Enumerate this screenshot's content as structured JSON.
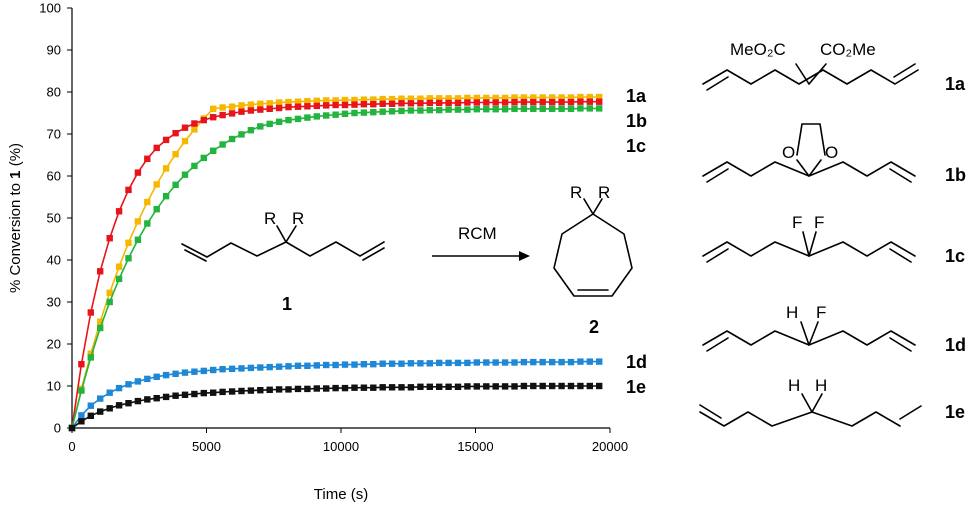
{
  "chart_data": {
    "type": "scatter",
    "title": "",
    "xlabel": "Time (s)",
    "ylabel": {
      "prefix": "% Conversion to ",
      "bold": "1",
      "suffix": " (%)"
    },
    "xlim": [
      0,
      20000
    ],
    "ylim": [
      0,
      100
    ],
    "xticks": [
      0,
      5000,
      10000,
      15000,
      20000
    ],
    "yticks": [
      0,
      10,
      20,
      30,
      40,
      50,
      60,
      70,
      80,
      90,
      100
    ],
    "grid": false,
    "x": [
      0,
      350,
      700,
      1050,
      1400,
      1750,
      2100,
      2450,
      2800,
      3150,
      3500,
      3850,
      4200,
      4550,
      4900,
      5250,
      5600,
      5950,
      6300,
      6650,
      7000,
      7350,
      7700,
      8050,
      8400,
      8750,
      9100,
      9450,
      9800,
      10150,
      10500,
      10850,
      11200,
      11550,
      11900,
      12250,
      12600,
      12950,
      13300,
      13650,
      14000,
      14350,
      14700,
      15050,
      15400,
      15750,
      16100,
      16450,
      16800,
      17150,
      17500,
      17850,
      18200,
      18550,
      18900,
      19250,
      19600
    ],
    "series": [
      {
        "name": "1a",
        "color": "#F5B800",
        "values": [
          0.0,
          9.3,
          17.7,
          25.3,
          32.2,
          38.4,
          44.1,
          49.2,
          53.8,
          58.0,
          61.8,
          65.2,
          68.3,
          71.1,
          73.7,
          76.0,
          76.3,
          76.5,
          76.8,
          77.0,
          77.2,
          77.3,
          77.5,
          77.6,
          77.7,
          77.8,
          77.9,
          78.0,
          78.0,
          78.1,
          78.1,
          78.2,
          78.2,
          78.3,
          78.3,
          78.4,
          78.4,
          78.4,
          78.5,
          78.5,
          78.5,
          78.5,
          78.6,
          78.6,
          78.6,
          78.6,
          78.6,
          78.7,
          78.7,
          78.7,
          78.7,
          78.7,
          78.7,
          78.7,
          78.8,
          78.8,
          78.8
        ]
      },
      {
        "name": "1b",
        "color": "#E8141C",
        "values": [
          0.0,
          15.2,
          27.5,
          37.3,
          45.2,
          51.6,
          56.7,
          60.8,
          64.1,
          66.7,
          68.6,
          70.2,
          71.5,
          72.5,
          73.3,
          74.0,
          74.5,
          74.9,
          75.3,
          75.6,
          75.8,
          76.0,
          76.2,
          76.4,
          76.5,
          76.6,
          76.7,
          76.8,
          76.9,
          76.9,
          77.0,
          77.1,
          77.1,
          77.2,
          77.2,
          77.3,
          77.3,
          77.3,
          77.4,
          77.4,
          77.4,
          77.4,
          77.5,
          77.5,
          77.5,
          77.5,
          77.5,
          77.6,
          77.6,
          77.6,
          77.6,
          77.6,
          77.6,
          77.6,
          77.7,
          77.7,
          77.7
        ]
      },
      {
        "name": "1c",
        "color": "#22B43E",
        "values": [
          0.0,
          8.9,
          16.8,
          23.8,
          30.0,
          35.5,
          40.4,
          44.8,
          48.7,
          52.1,
          55.2,
          57.9,
          60.3,
          62.4,
          64.3,
          66.0,
          67.5,
          68.8,
          69.9,
          70.9,
          71.8,
          72.4,
          72.9,
          73.3,
          73.6,
          73.9,
          74.2,
          74.4,
          74.6,
          74.8,
          75.0,
          75.1,
          75.2,
          75.3,
          75.4,
          75.5,
          75.6,
          75.6,
          75.7,
          75.7,
          75.8,
          75.8,
          75.8,
          75.9,
          75.9,
          75.9,
          75.9,
          76.0,
          76.0,
          76.0,
          76.0,
          76.0,
          76.0,
          76.0,
          76.1,
          76.1,
          76.1
        ]
      },
      {
        "name": "1d",
        "color": "#1E88D6",
        "values": [
          0.0,
          3.0,
          5.3,
          7.0,
          8.4,
          9.5,
          10.4,
          11.1,
          11.7,
          12.2,
          12.6,
          12.9,
          13.2,
          13.4,
          13.6,
          13.8,
          14.0,
          14.1,
          14.2,
          14.3,
          14.4,
          14.5,
          14.6,
          14.7,
          14.8,
          14.8,
          14.9,
          15.0,
          15.0,
          15.1,
          15.1,
          15.2,
          15.2,
          15.3,
          15.3,
          15.3,
          15.4,
          15.4,
          15.4,
          15.5,
          15.5,
          15.5,
          15.5,
          15.6,
          15.6,
          15.6,
          15.6,
          15.6,
          15.7,
          15.7,
          15.7,
          15.7,
          15.7,
          15.7,
          15.8,
          15.8,
          15.8
        ]
      },
      {
        "name": "1e",
        "color": "#111111",
        "values": [
          0.0,
          1.6,
          2.9,
          3.9,
          4.7,
          5.4,
          5.9,
          6.4,
          6.8,
          7.1,
          7.4,
          7.7,
          7.9,
          8.1,
          8.3,
          8.4,
          8.6,
          8.7,
          8.8,
          8.9,
          9.0,
          9.1,
          9.2,
          9.2,
          9.3,
          9.3,
          9.4,
          9.4,
          9.5,
          9.5,
          9.6,
          9.6,
          9.6,
          9.7,
          9.7,
          9.7,
          9.7,
          9.8,
          9.8,
          9.8,
          9.8,
          9.8,
          9.9,
          9.9,
          9.9,
          9.9,
          9.9,
          9.9,
          10.0,
          10.0,
          10.0,
          10.0,
          10.0,
          10.0,
          10.0,
          10.0,
          10.0
        ]
      }
    ],
    "series_labels": [
      "1a",
      "1b",
      "1c",
      "1d",
      "1e"
    ],
    "annotations": {
      "reaction": {
        "substrate": "1",
        "product": "2",
        "arrow_label": "RCM",
        "substituent": "R"
      }
    }
  },
  "structures": {
    "items": [
      {
        "id": "1a",
        "left_group": "MeO₂C",
        "right_group": "CO₂Me"
      },
      {
        "id": "1b",
        "left_group": "O",
        "right_group": "O"
      },
      {
        "id": "1c",
        "left_group": "F",
        "right_group": "F"
      },
      {
        "id": "1d",
        "left_group": "H",
        "right_group": "F"
      },
      {
        "id": "1e",
        "left_group": "H",
        "right_group": "H"
      }
    ]
  }
}
